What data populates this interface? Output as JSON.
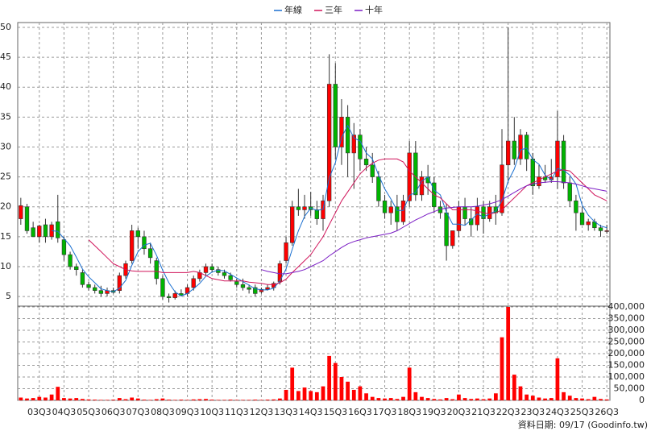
{
  "chart_data": [
    {
      "type": "candlestick",
      "categories": [
        null,
        null,
        null,
        "03Q3",
        null,
        null,
        null,
        "04Q3",
        null,
        null,
        null,
        "05Q3",
        null,
        null,
        null,
        "06Q3",
        null,
        null,
        null,
        "07Q3",
        null,
        null,
        null,
        "08Q3",
        null,
        null,
        null,
        "09Q3",
        null,
        null,
        null,
        "10Q3",
        null,
        null,
        null,
        "11Q3",
        null,
        null,
        null,
        "12Q3",
        null,
        null,
        null,
        "13Q3",
        null,
        null,
        null,
        "14Q3",
        null,
        null,
        null,
        "15Q3",
        null,
        null,
        null,
        "16Q3",
        null,
        null,
        null,
        "17Q3",
        null,
        null,
        null,
        "18Q3",
        null,
        null,
        null,
        "19Q3",
        null,
        null,
        null,
        "20Q3",
        null,
        null,
        null,
        "21Q3",
        null,
        null,
        null,
        "22Q3",
        null,
        null,
        null,
        "23Q3",
        null,
        null,
        null,
        "24Q3",
        null,
        null,
        null,
        "25Q3",
        null,
        null,
        null,
        "26Q3"
      ],
      "open": [
        18,
        20,
        16.5,
        15,
        17,
        15,
        17.5,
        14.5,
        12,
        10,
        9,
        7,
        6.5,
        6,
        5.5,
        6,
        6,
        8.5,
        11,
        16,
        15,
        13,
        11,
        8,
        5,
        4.8,
        5.5,
        5.5,
        6.5,
        8,
        9,
        10,
        9.5,
        9,
        8.5,
        7.5,
        7,
        6.5,
        6.5,
        5.8,
        6.2,
        6.5,
        7.5,
        11,
        14,
        20,
        19.5,
        20,
        19.5,
        18,
        21,
        40.5,
        30,
        35,
        29,
        32,
        28,
        27,
        25,
        21,
        19,
        20,
        17.5,
        21,
        29,
        22,
        25,
        24,
        20,
        19,
        13.5,
        16,
        20,
        18,
        17,
        20,
        18,
        20,
        19,
        27,
        31,
        28,
        32,
        28,
        23.5,
        25,
        24.5,
        25,
        31,
        24,
        21,
        19,
        17,
        17.5,
        16.5,
        16
      ],
      "high": [
        21.5,
        20.5,
        17.5,
        17,
        18,
        17.5,
        22,
        15,
        12.5,
        10.5,
        9.5,
        7.5,
        7,
        6.8,
        6.5,
        6.5,
        9,
        11,
        17,
        16.5,
        16,
        14,
        11.5,
        8.5,
        5.5,
        6,
        6.2,
        7,
        8.5,
        9.5,
        10.5,
        10.5,
        10,
        9.5,
        9,
        8,
        8,
        7,
        7,
        6.5,
        7,
        7.5,
        11,
        15,
        21,
        23,
        22,
        22.5,
        21,
        22,
        45.5,
        44,
        38,
        37,
        34,
        33,
        30,
        29,
        26,
        22,
        21,
        22,
        22,
        31,
        31,
        26,
        27,
        25,
        21,
        20.5,
        16,
        21,
        21.5,
        20,
        21.5,
        21,
        21,
        22,
        33,
        50,
        35,
        33,
        32.5,
        29,
        27,
        27,
        28,
        36,
        32,
        25,
        22,
        20,
        18,
        18,
        17,
        17
      ],
      "low": [
        17,
        15.5,
        15,
        14,
        14,
        14.5,
        14,
        11,
        9.5,
        8.5,
        6.5,
        6,
        5.5,
        5,
        5,
        5.5,
        5.5,
        8,
        10.5,
        13,
        12,
        10.5,
        7,
        4.5,
        4,
        4.5,
        5,
        5,
        6,
        7.5,
        8.5,
        9,
        8.5,
        8,
        7.5,
        6.5,
        6,
        5.5,
        5,
        5.5,
        6,
        6,
        7,
        10.5,
        13.5,
        18.5,
        18,
        18.5,
        17,
        16,
        20,
        28,
        27,
        25,
        23,
        26,
        26,
        24,
        20,
        18,
        17,
        16,
        17,
        20,
        21,
        21,
        22,
        19,
        18,
        11,
        13,
        15,
        17,
        15,
        16,
        15.5,
        17.5,
        17,
        18.5,
        24,
        27,
        27,
        26,
        22,
        23,
        24,
        24,
        23,
        23,
        20,
        16,
        17,
        16,
        16,
        15,
        15.5
      ],
      "close": [
        20.2,
        16,
        15,
        16.8,
        15,
        17,
        14.8,
        12,
        10,
        9.5,
        7,
        6.5,
        6,
        5.5,
        6,
        5.7,
        8.5,
        10.5,
        16,
        15,
        13,
        11.5,
        8,
        5,
        4.8,
        5.5,
        5.2,
        6.5,
        8,
        9,
        10,
        9.5,
        9,
        8.5,
        7.8,
        7,
        6.5,
        6.2,
        5.5,
        6.2,
        6.5,
        7.2,
        10.5,
        14,
        20,
        19.5,
        20,
        19.5,
        18,
        21,
        40.5,
        30,
        35,
        29,
        32,
        28,
        27,
        25,
        21,
        19,
        20,
        17.5,
        21,
        29,
        22,
        25,
        24,
        20,
        19,
        13.5,
        16,
        20,
        18,
        17,
        20,
        18,
        20,
        19,
        27,
        31,
        28,
        32,
        28,
        23.5,
        25,
        24.5,
        25,
        31,
        24,
        21,
        19,
        17,
        17.5,
        16.5,
        16,
        16
      ],
      "up_color": "#ff0000",
      "down_color": "#00b400",
      "series": [
        {
          "name": "年線",
          "color": "#1a6fd0",
          "values": [
            null,
            null,
            null,
            null,
            null,
            16,
            15.9,
            14.7,
            13.5,
            11.6,
            9.6,
            8.3,
            7.3,
            6.3,
            6,
            5.8,
            6.4,
            7.7,
            10.2,
            12.5,
            13.6,
            13.9,
            11.9,
            9.4,
            7.3,
            5.8,
            5.1,
            5.5,
            6.3,
            7.2,
            8.4,
            9.1,
            9.4,
            9.3,
            8.7,
            8.1,
            7.5,
            6.9,
            6.3,
            6.1,
            6.1,
            6.4,
            7.6,
            9.6,
            12.9,
            16,
            18.4,
            19.8,
            19.4,
            19.6,
            24.8,
            27.4,
            31.6,
            33.6,
            31.5,
            31,
            29,
            28,
            25.3,
            23,
            21.3,
            19.4,
            19.4,
            21.9,
            22.4,
            24.3,
            25,
            22.8,
            22,
            19.1,
            17.1,
            17.1,
            16.9,
            17.8,
            18.8,
            18.3,
            18.8,
            19.3,
            21,
            24.3,
            26.3,
            29.5,
            29.8,
            27.9,
            27.1,
            25.3,
            24.5,
            26.4,
            26.1,
            25.3,
            23.8,
            20.3,
            18.6,
            17.5,
            16.8,
            16.5
          ]
        },
        {
          "name": "三年",
          "color": "#d0145a",
          "values": [
            null,
            null,
            null,
            null,
            null,
            null,
            null,
            null,
            null,
            null,
            null,
            14.5,
            13.5,
            12.5,
            11.5,
            10.5,
            10,
            9.5,
            9.3,
            9.2,
            9.2,
            9.2,
            9.2,
            9,
            9,
            9,
            9,
            9,
            9.2,
            9,
            8.5,
            8,
            7.8,
            7.6,
            7.6,
            7.6,
            7.6,
            7.4,
            7.3,
            7.2,
            7,
            7,
            7.3,
            7.9,
            9,
            10,
            11,
            12,
            13.5,
            15,
            17,
            19,
            21,
            22.5,
            24,
            25.5,
            26.5,
            27.3,
            27.8,
            28,
            28,
            28,
            27.5,
            26,
            25,
            24,
            23,
            22,
            21.5,
            20.5,
            19.5,
            19.5,
            19.5,
            19.5,
            19.3,
            19,
            18.8,
            19,
            19.5,
            20.5,
            21.5,
            22.5,
            23.5,
            24,
            24.5,
            25,
            25.5,
            26,
            26.2,
            26,
            25,
            24,
            23,
            22,
            21.5,
            21
          ]
        },
        {
          "name": "十年",
          "color": "#7a1cc4",
          "values": [
            null,
            null,
            null,
            null,
            null,
            null,
            null,
            null,
            null,
            null,
            null,
            null,
            null,
            null,
            null,
            null,
            null,
            null,
            null,
            null,
            null,
            null,
            null,
            null,
            null,
            null,
            null,
            null,
            null,
            null,
            null,
            null,
            null,
            null,
            null,
            null,
            null,
            null,
            null,
            9.5,
            9.2,
            9,
            8.8,
            8.8,
            9,
            9.2,
            9.5,
            10,
            10.5,
            11,
            11.8,
            12.5,
            13.2,
            13.8,
            14.2,
            14.5,
            14.8,
            15,
            15.2,
            15.4,
            15.6,
            16,
            16.6,
            17.2,
            17.8,
            18.3,
            18.8,
            19.2,
            19.6,
            19.8,
            19.9,
            20,
            20,
            20,
            20.1,
            20.3,
            20.5,
            20.8,
            21.2,
            21.8,
            22.4,
            23,
            23.5,
            23.8,
            24,
            24.1,
            24.2,
            24.2,
            24.1,
            24,
            23.8,
            23.5,
            23.2,
            23,
            22.8,
            22.6
          ]
        }
      ],
      "ylim": [
        3.4,
        50.8
      ],
      "yticks": [
        5,
        10,
        15,
        20,
        25,
        30,
        35,
        40,
        45,
        50
      ],
      "grid": true
    },
    {
      "type": "bar",
      "color": "#ff0000",
      "values": [
        12000,
        8000,
        10000,
        15000,
        12000,
        25000,
        58000,
        10000,
        8000,
        10000,
        6000,
        4000,
        3000,
        2000,
        2000,
        3000,
        10000,
        5000,
        12000,
        8000,
        3000,
        2000,
        5000,
        8000,
        3000,
        2000,
        3000,
        2000,
        4000,
        5000,
        6000,
        3000,
        2000,
        2000,
        3000,
        2000,
        2000,
        2000,
        3000,
        2000,
        3000,
        4000,
        8000,
        45000,
        140000,
        40000,
        55000,
        40000,
        35000,
        60000,
        190000,
        160000,
        100000,
        80000,
        45000,
        60000,
        30000,
        15000,
        10000,
        8000,
        10000,
        6000,
        15000,
        140000,
        35000,
        15000,
        10000,
        6000,
        4000,
        10000,
        5000,
        25000,
        10000,
        6000,
        8000,
        5000,
        8000,
        30000,
        270000,
        400000,
        110000,
        60000,
        25000,
        20000,
        12000,
        8000,
        10000,
        180000,
        35000,
        20000,
        10000,
        8000,
        5000,
        15000,
        6000,
        4000
      ],
      "ylim": [
        0,
        400000
      ],
      "yticks": [
        0,
        {
          "value": 50000,
          "label": "50,000"
        },
        {
          "value": 100000,
          "label": "100,000"
        },
        {
          "value": 150000,
          "label": "150,000"
        },
        {
          "value": 200000,
          "label": "200,000"
        },
        {
          "value": 250000,
          "label": "250,000"
        },
        {
          "value": 300000,
          "label": "300,000"
        },
        {
          "value": 350000,
          "label": "350,000"
        },
        {
          "value": 400000,
          "label": "400,000"
        }
      ],
      "grid": true
    }
  ],
  "footer": "資料日期: 09/17 (Goodinfo.tw)"
}
